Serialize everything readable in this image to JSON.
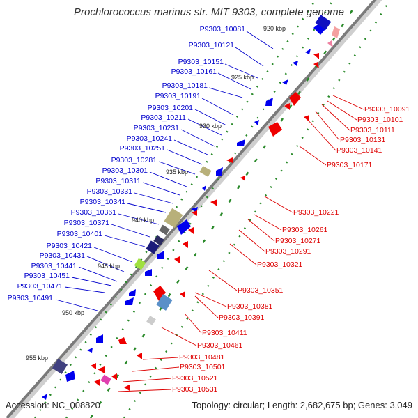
{
  "title": "Prochlorococcus marinus str. MIT 9303, complete genome",
  "footer": {
    "accession": "Accession: NC_008820",
    "topology": "Topology: circular; Length: 2,682,675 bp; Genes: 3,049"
  },
  "colors": {
    "forward_label": "#0000cc",
    "reverse_label": "#dd0000",
    "forward_feature": "#0000ee",
    "reverse_feature": "#ee0000",
    "backbone": "#888888",
    "tick": "#2a8a2a"
  },
  "kbp_labels": [
    "920 kbp",
    "925 kbp",
    "930 kbp",
    "935 kbp",
    "940 kbp",
    "945 kbp",
    "950 kbp",
    "955 kbp"
  ],
  "forward_genes": [
    "P9303_10081",
    "P9303_10121",
    "P9303_10151",
    "P9303_10161",
    "P9303_10181",
    "P9303_10191",
    "P9303_10201",
    "P9303_10211",
    "P9303_10231",
    "P9303_10241",
    "P9303_10251",
    "P9303_10281",
    "P9303_10301",
    "P9303_10311",
    "P9303_10331",
    "P9303_10341",
    "P9303_10361",
    "P9303_10371",
    "P9303_10401",
    "P9303_10421",
    "P9303_10431",
    "P9303_10441",
    "P9303_10451",
    "P9303_10471",
    "P9303_10491"
  ],
  "reverse_genes": [
    "P9303_10091",
    "P9303_10101",
    "P9303_10111",
    "P9303_10131",
    "P9303_10141",
    "P9303_10171",
    "P9303_10221",
    "P9303_10261",
    "P9303_10271",
    "P9303_10291",
    "P9303_10321",
    "P9303_10351",
    "P9303_10381",
    "P9303_10391",
    "P9303_10411",
    "P9303_10461",
    "P9303_10481",
    "P9303_10501",
    "P9303_10521",
    "P9303_10531"
  ]
}
